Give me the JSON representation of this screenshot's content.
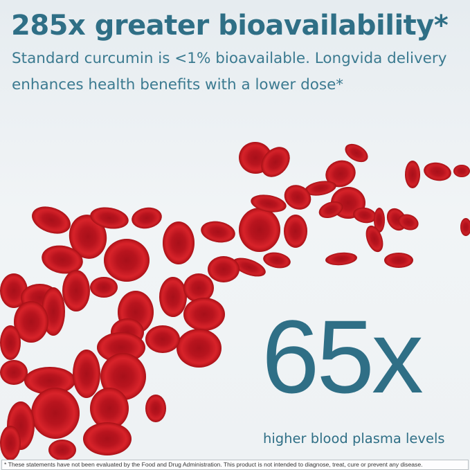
{
  "headline": "285x greater bioavailability*",
  "subheadline": "Standard curcumin is <1% bioavailable. Longvida delivery enhances health benefits with a lower dose*",
  "stat": {
    "value": "65x",
    "caption": "higher blood plasma levels"
  },
  "disclaimer": "* These statements have not been evaluated by the Food and Drug Administration. This product is not intended to diagnose, treat, cure or prevent any disease.",
  "colors": {
    "text": "#2f6f86",
    "cells": "#c8161f",
    "background": "#eef2f4"
  },
  "image": "red-blood-cells-illustration"
}
